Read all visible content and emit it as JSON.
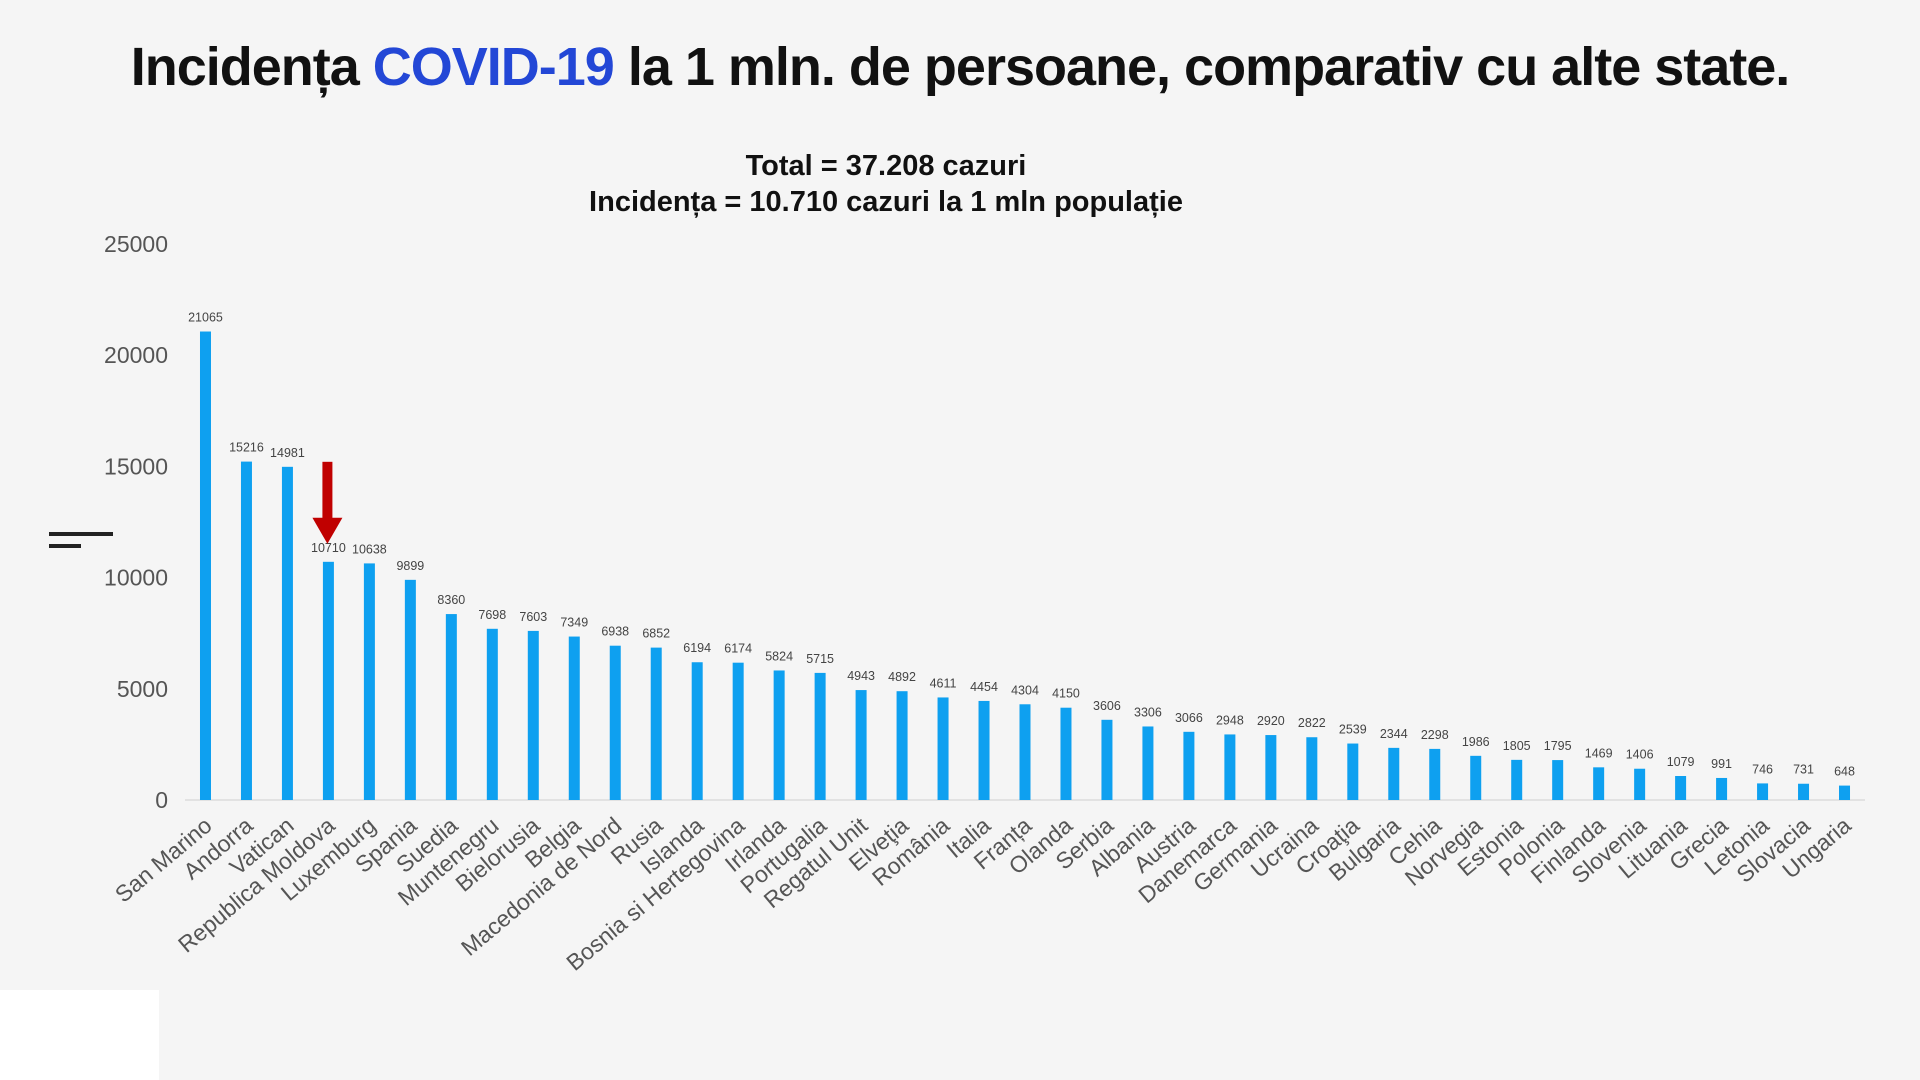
{
  "page": {
    "title_pre": "Incidența ",
    "title_highlight": "COVID-19",
    "title_post": " la 1 mln. de persoane, comparativ cu alte state.",
    "subtitle_line1": "Total = 37.208  cazuri",
    "subtitle_line2": "Incidența = 10.710 cazuri la 1 mln populație",
    "highlight_color": "#2347d6"
  },
  "chart_data": {
    "type": "bar",
    "title": "Incidența COVID-19 la 1 mln. de persoane, comparativ cu alte state.",
    "subtitle": "Total = 37.208  cazuri / Incidența = 10.710 cazuri la 1 mln populație",
    "categories": [
      "San Marino",
      "Andorra",
      "Vatican",
      "Republica Moldova",
      "Luxemburg",
      "Spania",
      "Suedia",
      "Muntenegru",
      "Bielorusia",
      "Belgia",
      "Macedonia de Nord",
      "Rusia",
      "Islanda",
      "Bosnia si Hertegovina",
      "Irlanda",
      "Portugalia",
      "Regatul Unit",
      "Elveţia",
      "România",
      "Italia",
      "Franța",
      "Olanda",
      "Serbia",
      "Albania",
      "Austria",
      "Danemarca",
      "Germania",
      "Ucraina",
      "Croaţia",
      "Bulgaria",
      "Cehia",
      "Norvegia",
      "Estonia",
      "Polonia",
      "Finlanda",
      "Slovenia",
      "Lituania",
      "Grecia",
      "Letonia",
      "Slovacia",
      "Ungaria"
    ],
    "values": [
      21065,
      15216,
      14981,
      10710,
      10638,
      9899,
      8360,
      7698,
      7603,
      7349,
      6938,
      6852,
      6194,
      6174,
      5824,
      5715,
      4943,
      4892,
      4611,
      4454,
      4304,
      4150,
      3606,
      3306,
      3066,
      2948,
      2920,
      2822,
      2539,
      2344,
      2298,
      1986,
      1805,
      1795,
      1469,
      1406,
      1079,
      991,
      746,
      731,
      648
    ],
    "ylim": [
      0,
      25000
    ],
    "yticks": [
      0,
      5000,
      10000,
      15000,
      20000,
      25000
    ],
    "xlabel": "",
    "ylabel": "",
    "bar_color": "#0ea0f0",
    "highlight_category": "Republica Moldova",
    "arrow_color": "#c00000",
    "grid": false
  }
}
